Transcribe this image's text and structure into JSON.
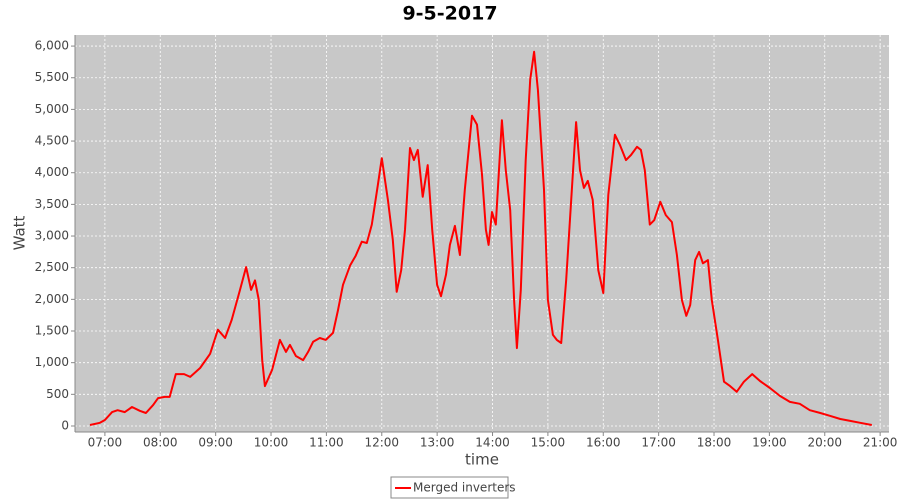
{
  "chart_data": {
    "type": "line",
    "title": "9-5-2017",
    "x_label": "time",
    "y_label": "Watt",
    "legend": "bottom",
    "grid": true,
    "xlim": [
      6.46,
      21.16
    ],
    "ylim": [
      -95,
      6175
    ],
    "xticks": [
      {
        "value": 7,
        "label": "07:00"
      },
      {
        "value": 8,
        "label": "08:00"
      },
      {
        "value": 9,
        "label": "09:00"
      },
      {
        "value": 10,
        "label": "10:00"
      },
      {
        "value": 11,
        "label": "11:00"
      },
      {
        "value": 12,
        "label": "12:00"
      },
      {
        "value": 13,
        "label": "13:00"
      },
      {
        "value": 14,
        "label": "14:00"
      },
      {
        "value": 15,
        "label": "15:00"
      },
      {
        "value": 16,
        "label": "16:00"
      },
      {
        "value": 17,
        "label": "17:00"
      },
      {
        "value": 18,
        "label": "18:00"
      },
      {
        "value": 19,
        "label": "19:00"
      },
      {
        "value": 20,
        "label": "20:00"
      },
      {
        "value": 21,
        "label": "21:00"
      }
    ],
    "yticks": [
      0,
      500,
      {
        "value": 1000,
        "label": "1,000"
      },
      {
        "value": 1500,
        "label": "1,500"
      },
      {
        "value": 2000,
        "label": "2,000"
      },
      {
        "value": 2500,
        "label": "2,500"
      },
      {
        "value": 3000,
        "label": "3,000"
      },
      {
        "value": 3500,
        "label": "3,500"
      },
      {
        "value": 4000,
        "label": "4,000"
      },
      {
        "value": 4500,
        "label": "4,500"
      },
      {
        "value": 5000,
        "label": "5,000"
      },
      {
        "value": 5500,
        "label": "5,500"
      },
      {
        "value": 6000,
        "label": "6,000"
      }
    ],
    "x": [
      6.73,
      6.91,
      7.0,
      7.13,
      7.23,
      7.36,
      7.49,
      7.63,
      7.74,
      7.87,
      7.96,
      8.08,
      8.17,
      8.28,
      8.43,
      8.54,
      8.72,
      8.9,
      9.04,
      9.17,
      9.29,
      9.44,
      9.55,
      9.64,
      9.71,
      9.78,
      9.84,
      9.89,
      10.02,
      10.16,
      10.27,
      10.34,
      10.45,
      10.58,
      10.67,
      10.76,
      10.88,
      10.99,
      11.12,
      11.21,
      11.3,
      11.43,
      11.53,
      11.64,
      11.73,
      11.82,
      11.93,
      12.0,
      12.11,
      12.2,
      12.27,
      12.35,
      12.42,
      12.51,
      12.58,
      12.65,
      12.74,
      12.83,
      12.91,
      13.0,
      13.07,
      13.16,
      13.23,
      13.32,
      13.41,
      13.5,
      13.63,
      13.72,
      13.81,
      13.88,
      13.93,
      13.99,
      14.06,
      14.17,
      14.24,
      14.32,
      14.39,
      14.44,
      14.51,
      14.6,
      14.68,
      14.75,
      14.82,
      14.93,
      15.0,
      15.09,
      15.16,
      15.24,
      15.33,
      15.42,
      15.51,
      15.58,
      15.65,
      15.72,
      15.81,
      15.91,
      16.0,
      16.09,
      16.21,
      16.3,
      16.41,
      16.5,
      16.61,
      16.68,
      16.75,
      16.84,
      16.92,
      17.03,
      17.13,
      17.24,
      17.33,
      17.42,
      17.5,
      17.57,
      17.66,
      17.73,
      17.8,
      17.89,
      17.96,
      18.07,
      18.18,
      18.29,
      18.41,
      18.54,
      18.69,
      18.83,
      19.01,
      19.19,
      19.37,
      19.55,
      19.73,
      19.92,
      20.1,
      20.28,
      20.46,
      20.64,
      20.85
    ],
    "series": [
      {
        "name": "Merged inverters",
        "color": "#ff0000",
        "values": [
          15,
          50,
          95,
          220,
          250,
          220,
          300,
          240,
          205,
          330,
          440,
          460,
          460,
          820,
          820,
          775,
          915,
          1140,
          1520,
          1390,
          1675,
          2150,
          2510,
          2150,
          2300,
          1990,
          1040,
          630,
          885,
          1360,
          1170,
          1280,
          1105,
          1040,
          1170,
          1330,
          1390,
          1360,
          1470,
          1830,
          2230,
          2540,
          2690,
          2910,
          2890,
          3180,
          3810,
          4230,
          3570,
          2940,
          2120,
          2460,
          3100,
          4390,
          4200,
          4360,
          3620,
          4120,
          3100,
          2230,
          2050,
          2390,
          2860,
          3160,
          2700,
          3730,
          4900,
          4760,
          3970,
          3100,
          2860,
          3380,
          3180,
          4830,
          4040,
          3410,
          1990,
          1230,
          2150,
          4200,
          5470,
          5910,
          5310,
          3730,
          1990,
          1440,
          1360,
          1310,
          2310,
          3570,
          4800,
          4040,
          3760,
          3870,
          3570,
          2460,
          2100,
          3650,
          4600,
          4440,
          4200,
          4280,
          4410,
          4360,
          4040,
          3180,
          3250,
          3540,
          3330,
          3220,
          2700,
          1990,
          1740,
          1910,
          2620,
          2750,
          2570,
          2620,
          1990,
          1360,
          700,
          630,
          540,
          700,
          820,
          710,
          600,
          475,
          380,
          350,
          250,
          205,
          160,
          110,
          80,
          50,
          15
        ]
      }
    ]
  }
}
